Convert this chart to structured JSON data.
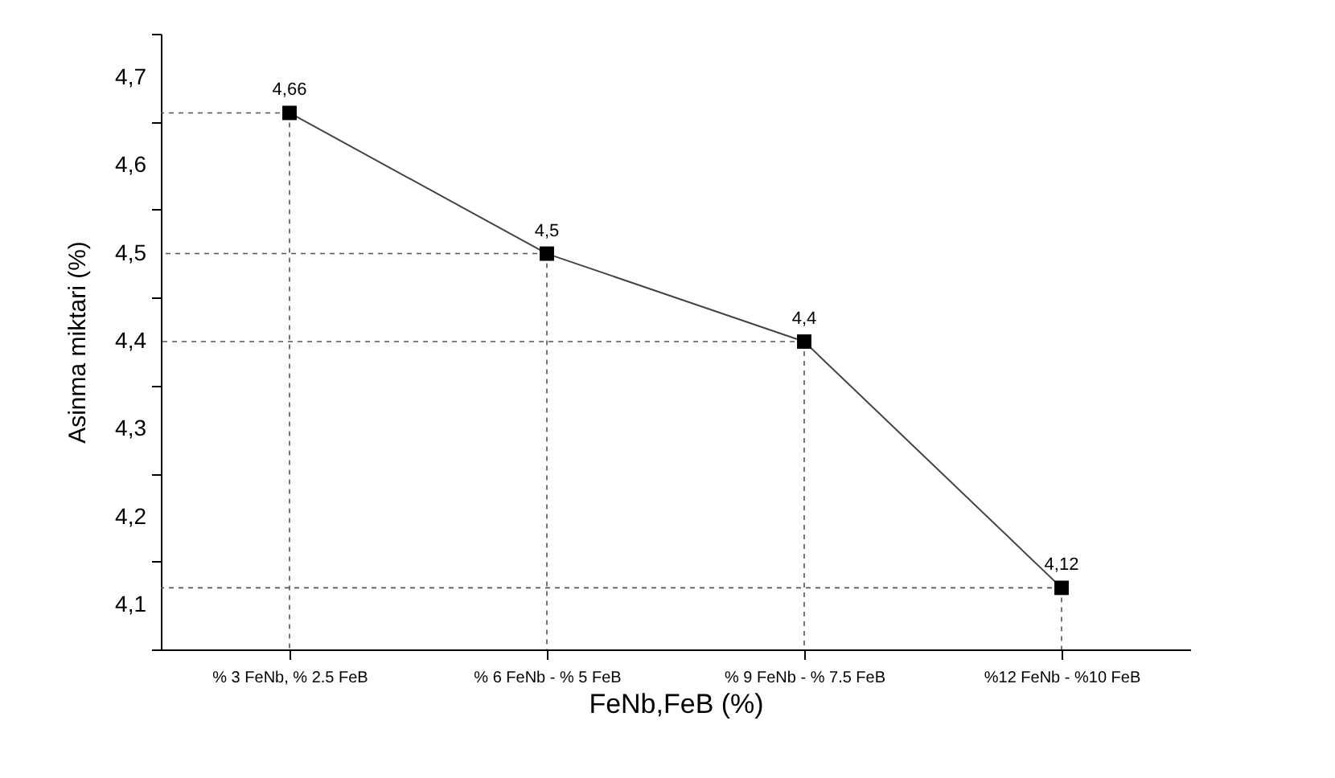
{
  "chart_data": {
    "type": "line",
    "xlabel": "FeNb,FeB (%)",
    "ylabel": "Asinma miktari (%)",
    "categories": [
      "% 3 FeNb, % 2.5 FeB",
      "% 6 FeNb - % 5 FeB",
      "% 9 FeNb - % 7.5 FeB",
      "%12 FeNb - %10 FeB"
    ],
    "series": [
      {
        "color": "#000000",
        "values": [
          4.66,
          4.5,
          4.4,
          4.12
        ],
        "value_labels": [
          "4,66",
          "4,5",
          "4,4",
          "4,12"
        ]
      }
    ],
    "ylim": [
      4.05,
      4.75
    ],
    "yticks": [
      {
        "value": 4.05,
        "label": null
      },
      {
        "value": 4.1,
        "label": "4,1"
      },
      {
        "value": 4.15,
        "label": null
      },
      {
        "value": 4.2,
        "label": "4,2"
      },
      {
        "value": 4.25,
        "label": null
      },
      {
        "value": 4.3,
        "label": "4,3"
      },
      {
        "value": 4.35,
        "label": null
      },
      {
        "value": 4.4,
        "label": "4,4"
      },
      {
        "value": 4.45,
        "label": null
      },
      {
        "value": 4.5,
        "label": "4,5"
      },
      {
        "value": 4.55,
        "label": null
      },
      {
        "value": 4.6,
        "label": "4,6"
      },
      {
        "value": 4.65,
        "label": null
      },
      {
        "value": 4.7,
        "label": "4,7"
      },
      {
        "value": 4.75,
        "label": null
      }
    ],
    "marker": "square",
    "line_style": "solid"
  }
}
